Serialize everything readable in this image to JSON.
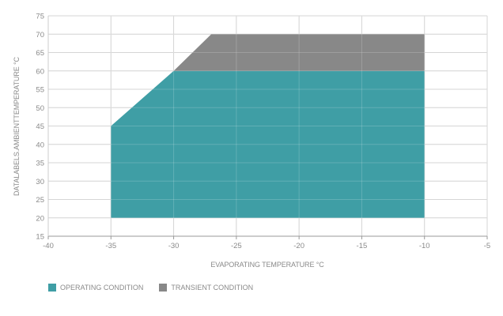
{
  "colors": {
    "operating": "#3f9ea5",
    "transient": "#888888",
    "grid": "#cccccc",
    "axis": "#999999"
  },
  "chart_data": {
    "type": "area",
    "title": "",
    "xlabel": "EVAPORATING TEMPERATURE °C",
    "ylabel": "DATALABELS.AMBIENTTEMPERATURE °C",
    "xlim": [
      -40,
      -5
    ],
    "ylim": [
      15,
      75
    ],
    "x_ticks": [
      "-40",
      "-35",
      "-30",
      "-25",
      "-20",
      "-15",
      "-10",
      "-5"
    ],
    "y_ticks": [
      "15",
      "20",
      "25",
      "30",
      "35",
      "40",
      "45",
      "50",
      "55",
      "60",
      "65",
      "70",
      "75"
    ],
    "grid": true,
    "legend_position": "bottom-left",
    "series": [
      {
        "name": "OPERATING CONDITION",
        "polygon": [
          [
            -35,
            20
          ],
          [
            -35,
            45
          ],
          [
            -30,
            60
          ],
          [
            -10,
            60
          ],
          [
            -10,
            20
          ]
        ]
      },
      {
        "name": "TRANSIENT CONDITION",
        "polygon": [
          [
            -30,
            60
          ],
          [
            -27,
            70
          ],
          [
            -10,
            70
          ],
          [
            -10,
            60
          ]
        ]
      }
    ]
  }
}
